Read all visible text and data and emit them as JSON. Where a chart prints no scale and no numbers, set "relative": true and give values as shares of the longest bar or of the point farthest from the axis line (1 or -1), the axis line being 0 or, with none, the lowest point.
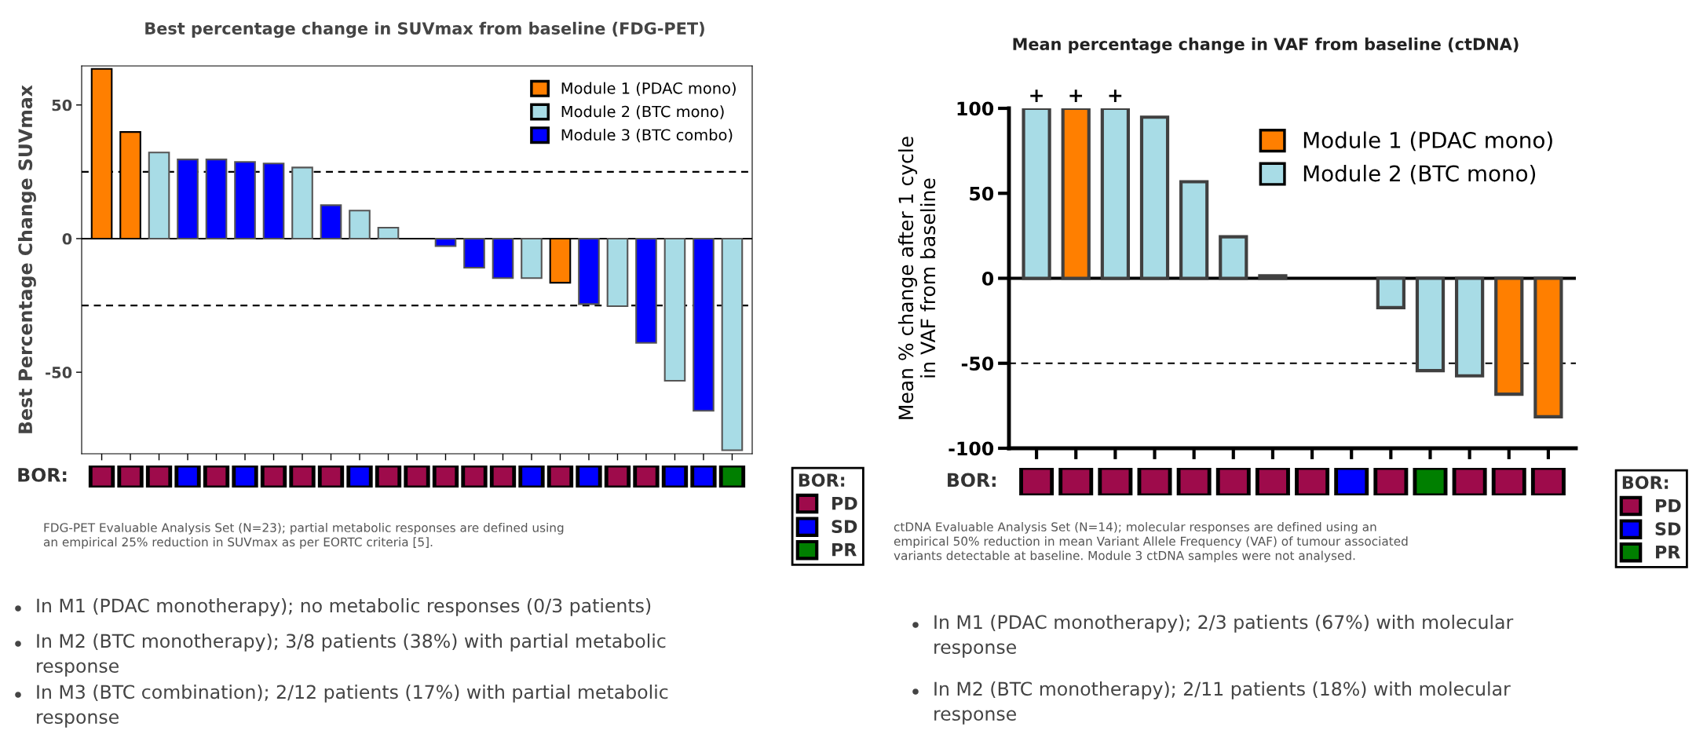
{
  "chart_data": [
    {
      "type": "bar",
      "title": "Best percentage change in SUVmax from baseline (FDG-PET)",
      "ylabel": "Best Percentage Change SUVmax",
      "categories": [
        null,
        null,
        null,
        null,
        null,
        null,
        null,
        null,
        null,
        null,
        null,
        null,
        null,
        null,
        null,
        null,
        null,
        null,
        null,
        null,
        null,
        null,
        null
      ],
      "series": [
        {
          "name": "Module 1 (PDAC mono)",
          "color": "#ff7f00",
          "values": [
            63.5,
            39.9,
            null,
            null,
            null,
            null,
            null,
            null,
            null,
            null,
            null,
            null,
            null,
            null,
            null,
            null,
            -16.5,
            null,
            null,
            null,
            null,
            null,
            null
          ]
        },
        {
          "name": "Module 2 (BTC mono)",
          "color": "#a8dce6",
          "values": [
            null,
            null,
            32.2,
            null,
            null,
            null,
            null,
            26.6,
            null,
            10.5,
            4.1,
            null,
            null,
            null,
            null,
            -14.8,
            null,
            null,
            -25.3,
            null,
            -53.2,
            null,
            -79.2
          ]
        },
        {
          "name": "Module 3 (BTC combo)",
          "color": "#0000ff",
          "values": [
            null,
            null,
            null,
            29.6,
            29.6,
            28.7,
            28.1,
            null,
            12.5,
            null,
            null,
            null,
            -2.8,
            -10.9,
            -14.8,
            null,
            null,
            -24.5,
            null,
            -39,
            null,
            -64.4,
            null
          ]
        }
      ],
      "ylim": [
        -80.5,
        64.6
      ],
      "yticks": [
        -50,
        0,
        50
      ],
      "ref_lines": [
        {
          "axis": "y",
          "value": 25,
          "line_style": "dashed"
        },
        {
          "axis": "y",
          "value": -25,
          "line_style": "dashed"
        }
      ],
      "legend": "top right",
      "annotations": [
        "FDG-PET Evaluable Analysis Set (N=23); partial metabolic responses are defined using\nan empirical 25% reduction in SUVmax as per EORTC criteria [5].",
        "In M1 (PDAC monotherapy); no metabolic responses (0/3 patients)",
        "In M2 (BTC monotherapy); 3/8 patients (38%) with partial metabolic\nresponse",
        "In M3 (BTC combination); 2/12 patients (17%) with partial metabolic\nresponse"
      ]
    },
    {
      "type": "bar",
      "relative": true,
      "ylabel": "BOR:",
      "categories": [
        null,
        null,
        null,
        null,
        null,
        null,
        null,
        null,
        null,
        null,
        null,
        null,
        null,
        null,
        null,
        null,
        null,
        null,
        null,
        null,
        null,
        null,
        null
      ],
      "legend_title": "BOR:",
      "legend": "right",
      "series": [
        {
          "name": "PD",
          "color": "#9e0b4b",
          "values": [
            1,
            1,
            1,
            null,
            1,
            null,
            1,
            1,
            1,
            null,
            1,
            1,
            1,
            1,
            1,
            null,
            1,
            null,
            1,
            1,
            null,
            null,
            null
          ]
        },
        {
          "name": "SD",
          "color": "#0000ff",
          "values": [
            null,
            null,
            null,
            1,
            null,
            1,
            null,
            null,
            null,
            1,
            null,
            null,
            null,
            null,
            null,
            1,
            null,
            1,
            null,
            null,
            1,
            1,
            null
          ]
        },
        {
          "name": "PR",
          "color": "#007f00",
          "values": [
            null,
            null,
            null,
            null,
            null,
            null,
            null,
            null,
            null,
            null,
            null,
            null,
            null,
            null,
            null,
            null,
            null,
            null,
            null,
            null,
            null,
            null,
            1
          ]
        }
      ]
    },
    {
      "type": "bar",
      "title": "Mean percentage change in VAF from baseline (ctDNA)",
      "ylabel": "Mean % change after 1 cycle\nin VAF from baseline",
      "categories": [
        null,
        null,
        null,
        null,
        null,
        null,
        null,
        null,
        null,
        null,
        null,
        null,
        null,
        null
      ],
      "series": [
        {
          "name": "Module 1 (PDAC mono)",
          "color": "#ff7f00",
          "values": [
            null,
            100,
            null,
            null,
            null,
            null,
            null,
            null,
            null,
            null,
            null,
            null,
            -68.2,
            -81.5
          ]
        },
        {
          "name": "Module 2 (BTC mono)",
          "color": "#a8dce6",
          "values": [
            100,
            null,
            100,
            94.8,
            56.8,
            24.4,
            1.5,
            null,
            null,
            -17.3,
            -54.3,
            -57.4,
            null,
            null
          ]
        }
      ],
      "ylim": [
        -100,
        100
      ],
      "yticks": [
        -100,
        -50,
        0,
        50,
        100
      ],
      "ref_lines": [
        {
          "axis": "y",
          "value": -50,
          "line_style": "dashed"
        }
      ],
      "legend": "top right",
      "annotations": [
        {
          "text": "+",
          "y": 100
        },
        {
          "text": "+",
          "y": 100
        },
        {
          "text": "+",
          "y": 100
        },
        "ctDNA Evaluable Analysis Set (N=14); molecular responses are defined using an\nempirical 50% reduction in mean Variant Allele Frequency (VAF) of tumour associated\nvariants detectable at baseline. Module 3 ctDNA samples were not analysed.",
        "In M1 (PDAC monotherapy); 2/3 patients (67%) with molecular\nresponse",
        "In M2 (BTC monotherapy); 2/11 patients (18%) with molecular\nresponse"
      ]
    },
    {
      "type": "bar",
      "relative": true,
      "ylabel": "BOR:",
      "categories": [
        null,
        null,
        null,
        null,
        null,
        null,
        null,
        null,
        null,
        null,
        null,
        null,
        null,
        null
      ],
      "legend_title": "BOR:",
      "legend": "right",
      "series": [
        {
          "name": "PD",
          "color": "#9e0b4b",
          "values": [
            1,
            1,
            1,
            1,
            1,
            1,
            1,
            1,
            null,
            1,
            null,
            1,
            1,
            1
          ]
        },
        {
          "name": "SD",
          "color": "#0000ff",
          "values": [
            null,
            null,
            null,
            null,
            null,
            null,
            null,
            null,
            1,
            null,
            null,
            null,
            null,
            null
          ]
        },
        {
          "name": "PR",
          "color": "#007f00",
          "values": [
            null,
            null,
            null,
            null,
            null,
            null,
            null,
            null,
            null,
            null,
            1,
            null,
            null,
            null
          ]
        }
      ]
    }
  ]
}
